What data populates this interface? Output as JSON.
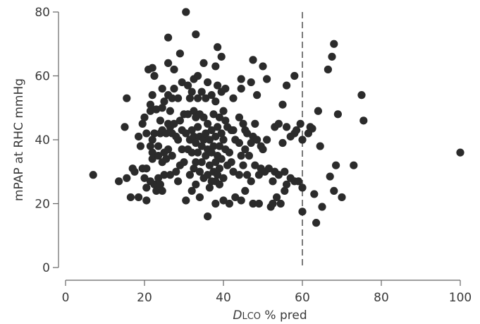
{
  "chart_data": {
    "type": "scatter",
    "xlabel_italic": "D",
    "xlabel_smallcaps": "LCO",
    "xlabel_rest": " % pred",
    "ylabel": "mPAP at RHC mmHg",
    "xlim": [
      0,
      100
    ],
    "ylim": [
      0,
      80
    ],
    "xticks": [
      0,
      20,
      40,
      60,
      80,
      100
    ],
    "yticks": [
      0,
      20,
      40,
      60,
      80
    ],
    "reference_line": {
      "x": 60,
      "style": "dashed"
    },
    "marker_color": "#2b2b2b",
    "points": [
      [
        7.0,
        29.0
      ],
      [
        13.5,
        27.0
      ],
      [
        15.0,
        44.0
      ],
      [
        15.5,
        53.0
      ],
      [
        15.5,
        28.0
      ],
      [
        16.5,
        22.0
      ],
      [
        17.0,
        31.0
      ],
      [
        17.5,
        30.0
      ],
      [
        18.5,
        41.0
      ],
      [
        18.5,
        22.0
      ],
      [
        19.0,
        38.0
      ],
      [
        19.5,
        45.0
      ],
      [
        19.5,
        31.0
      ],
      [
        20.0,
        28.0
      ],
      [
        20.0,
        47.0
      ],
      [
        20.5,
        42.0
      ],
      [
        20.5,
        31.0
      ],
      [
        20.5,
        25.0
      ],
      [
        20.5,
        21.0
      ],
      [
        21.0,
        62.0
      ],
      [
        21.5,
        49.0
      ],
      [
        21.5,
        51.0
      ],
      [
        21.5,
        38.0
      ],
      [
        21.5,
        27.0
      ],
      [
        22.0,
        62.5
      ],
      [
        22.0,
        54.0
      ],
      [
        22.0,
        40.0
      ],
      [
        22.0,
        36.0
      ],
      [
        22.0,
        34.0
      ],
      [
        22.5,
        60.0
      ],
      [
        22.5,
        42.0
      ],
      [
        22.5,
        26.0
      ],
      [
        23.0,
        24.0
      ],
      [
        23.0,
        49.5
      ],
      [
        23.5,
        35.0
      ],
      [
        23.5,
        38.0
      ],
      [
        23.5,
        28.0
      ],
      [
        24.0,
        46.0
      ],
      [
        24.0,
        42.0
      ],
      [
        24.0,
        26.0
      ],
      [
        24.5,
        56.0
      ],
      [
        24.5,
        50.0
      ],
      [
        24.5,
        43.0
      ],
      [
        24.5,
        33.0
      ],
      [
        24.5,
        24.0
      ],
      [
        25.0,
        52.0
      ],
      [
        25.0,
        36.0
      ],
      [
        25.0,
        29.0
      ],
      [
        25.5,
        42.0
      ],
      [
        25.5,
        34.0
      ],
      [
        26.0,
        72.0
      ],
      [
        26.0,
        64.0
      ],
      [
        26.0,
        54.0
      ],
      [
        26.0,
        45.0
      ],
      [
        26.0,
        37.0
      ],
      [
        26.5,
        44.0
      ],
      [
        26.5,
        49.0
      ],
      [
        26.5,
        29.0
      ],
      [
        27.0,
        53.0
      ],
      [
        27.0,
        42.0
      ],
      [
        27.0,
        35.0
      ],
      [
        27.5,
        62.0
      ],
      [
        27.5,
        56.0
      ],
      [
        27.5,
        45.0
      ],
      [
        28.0,
        41.0
      ],
      [
        28.0,
        30.0
      ],
      [
        28.5,
        53.0
      ],
      [
        28.5,
        40.0
      ],
      [
        28.5,
        27.0
      ],
      [
        29.0,
        67.0
      ],
      [
        29.0,
        46.0
      ],
      [
        29.0,
        32.0
      ],
      [
        29.5,
        58.0
      ],
      [
        29.5,
        43.0
      ],
      [
        29.5,
        37.0
      ],
      [
        30.0,
        48.0
      ],
      [
        30.0,
        33.0
      ],
      [
        30.5,
        80.0
      ],
      [
        30.5,
        42.0
      ],
      [
        30.5,
        21.0
      ],
      [
        31.0,
        57.0
      ],
      [
        31.0,
        48.0
      ],
      [
        31.0,
        37.0
      ],
      [
        31.5,
        53.0
      ],
      [
        31.5,
        40.0
      ],
      [
        31.5,
        29.0
      ],
      [
        32.0,
        55.0
      ],
      [
        32.0,
        43.0
      ],
      [
        32.0,
        36.0
      ],
      [
        32.0,
        24.0
      ],
      [
        32.5,
        59.0
      ],
      [
        32.5,
        49.0
      ],
      [
        32.5,
        41.0
      ],
      [
        32.5,
        31.0
      ],
      [
        33.0,
        73.0
      ],
      [
        33.0,
        47.0
      ],
      [
        33.0,
        39.0
      ],
      [
        33.0,
        33.0
      ],
      [
        33.0,
        26.0
      ],
      [
        33.5,
        60.0
      ],
      [
        33.5,
        53.0
      ],
      [
        33.5,
        44.0
      ],
      [
        33.5,
        36.0
      ],
      [
        34.0,
        48.0
      ],
      [
        34.0,
        41.0
      ],
      [
        34.0,
        30.0
      ],
      [
        34.0,
        22.0
      ],
      [
        34.5,
        55.0
      ],
      [
        34.5,
        38.0
      ],
      [
        34.5,
        33.0
      ],
      [
        35.0,
        64.0
      ],
      [
        35.0,
        47.0
      ],
      [
        35.0,
        40.0
      ],
      [
        35.0,
        28.0
      ],
      [
        35.5,
        53.0
      ],
      [
        35.5,
        42.0
      ],
      [
        35.5,
        35.0
      ],
      [
        36.0,
        16.0
      ],
      [
        36.0,
        58.0
      ],
      [
        36.0,
        45.0
      ],
      [
        36.0,
        37.0
      ],
      [
        36.0,
        29.0
      ],
      [
        36.5,
        40.0
      ],
      [
        36.5,
        32.0
      ],
      [
        36.5,
        25.0
      ],
      [
        37.0,
        54.0
      ],
      [
        37.0,
        43.0
      ],
      [
        37.0,
        36.0
      ],
      [
        37.0,
        27.0
      ],
      [
        37.5,
        48.0
      ],
      [
        37.5,
        38.0
      ],
      [
        37.5,
        30.0
      ],
      [
        38.0,
        63.0
      ],
      [
        38.0,
        52.0
      ],
      [
        38.0,
        41.0
      ],
      [
        38.0,
        33.0
      ],
      [
        38.0,
        27.0
      ],
      [
        38.0,
        20.0
      ],
      [
        38.5,
        69.0
      ],
      [
        38.5,
        57.0
      ],
      [
        38.5,
        44.0
      ],
      [
        38.5,
        35.0
      ],
      [
        38.5,
        29.0
      ],
      [
        39.0,
        47.0
      ],
      [
        39.0,
        38.0
      ],
      [
        39.0,
        31.0
      ],
      [
        39.0,
        26.0
      ],
      [
        39.5,
        66.0
      ],
      [
        39.5,
        55.0
      ],
      [
        39.5,
        42.0
      ],
      [
        39.5,
        34.0
      ],
      [
        40.0,
        49.0
      ],
      [
        40.0,
        40.0
      ],
      [
        40.0,
        28.0
      ],
      [
        40.0,
        21.0
      ],
      [
        40.5,
        56.0
      ],
      [
        40.5,
        46.0
      ],
      [
        40.5,
        37.0
      ],
      [
        41.0,
        44.0
      ],
      [
        41.0,
        32.0
      ],
      [
        41.5,
        36.0
      ],
      [
        41.5,
        20.0
      ],
      [
        42.0,
        43.0
      ],
      [
        42.0,
        33.0
      ],
      [
        42.5,
        53.0
      ],
      [
        42.5,
        43.0
      ],
      [
        42.5,
        30.0
      ],
      [
        43.0,
        40.0
      ],
      [
        43.0,
        22.0
      ],
      [
        44.0,
        47.0
      ],
      [
        44.0,
        39.0
      ],
      [
        44.0,
        29.0
      ],
      [
        44.5,
        56.0
      ],
      [
        44.5,
        59.0
      ],
      [
        44.5,
        35.0
      ],
      [
        44.5,
        21.0
      ],
      [
        45.0,
        45.0
      ],
      [
        45.0,
        32.0
      ],
      [
        45.5,
        43.0
      ],
      [
        45.5,
        37.0
      ],
      [
        45.5,
        24.0
      ],
      [
        46.0,
        42.0
      ],
      [
        46.0,
        29.0
      ],
      [
        46.5,
        35.0
      ],
      [
        47.0,
        58.0
      ],
      [
        47.0,
        39.0
      ],
      [
        47.0,
        27.0
      ],
      [
        47.5,
        65.0
      ],
      [
        47.5,
        41.0
      ],
      [
        47.5,
        20.0
      ],
      [
        48.0,
        45.0
      ],
      [
        48.0,
        32.0
      ],
      [
        48.5,
        54.0
      ],
      [
        48.5,
        40.0
      ],
      [
        49.0,
        29.0
      ],
      [
        49.0,
        20.0
      ],
      [
        49.5,
        38.0
      ],
      [
        49.5,
        31.0
      ],
      [
        50.0,
        63.0
      ],
      [
        50.0,
        37.0
      ],
      [
        50.5,
        30.0
      ],
      [
        51.0,
        59.0
      ],
      [
        51.0,
        40.0
      ],
      [
        51.5,
        31.0
      ],
      [
        52.0,
        19.0
      ],
      [
        52.5,
        27.0
      ],
      [
        52.5,
        20.0
      ],
      [
        53.0,
        44.0
      ],
      [
        53.0,
        30.0
      ],
      [
        53.5,
        22.0
      ],
      [
        54.0,
        45.0
      ],
      [
        54.0,
        29.0
      ],
      [
        54.5,
        20.0
      ],
      [
        55.0,
        51.0
      ],
      [
        55.0,
        39.0
      ],
      [
        55.5,
        30.0
      ],
      [
        55.5,
        24.0
      ],
      [
        56.0,
        57.0
      ],
      [
        56.0,
        44.0
      ],
      [
        56.0,
        26.0
      ],
      [
        57.0,
        41.0
      ],
      [
        57.0,
        28.0
      ],
      [
        58.0,
        60.0
      ],
      [
        58.0,
        42.0
      ],
      [
        58.0,
        27.0
      ],
      [
        58.5,
        43.0
      ],
      [
        59.0,
        27.0
      ],
      [
        59.5,
        45.0
      ],
      [
        60.0,
        17.5
      ],
      [
        60.0,
        40.0
      ],
      [
        60.0,
        25.0
      ],
      [
        61.5,
        42.0
      ],
      [
        62.0,
        44.0
      ],
      [
        62.5,
        43.5
      ],
      [
        63.0,
        23.0
      ],
      [
        63.5,
        14.0
      ],
      [
        64.0,
        49.0
      ],
      [
        64.5,
        38.0
      ],
      [
        65.0,
        19.0
      ],
      [
        66.5,
        62.0
      ],
      [
        67.0,
        28.5
      ],
      [
        67.5,
        66.0
      ],
      [
        68.0,
        24.0
      ],
      [
        68.0,
        70.0
      ],
      [
        68.5,
        32.0
      ],
      [
        69.0,
        48.0
      ],
      [
        70.0,
        22.0
      ],
      [
        73.0,
        32.0
      ],
      [
        75.0,
        54.0
      ],
      [
        75.5,
        46.0
      ],
      [
        100.0,
        36.0
      ]
    ]
  }
}
